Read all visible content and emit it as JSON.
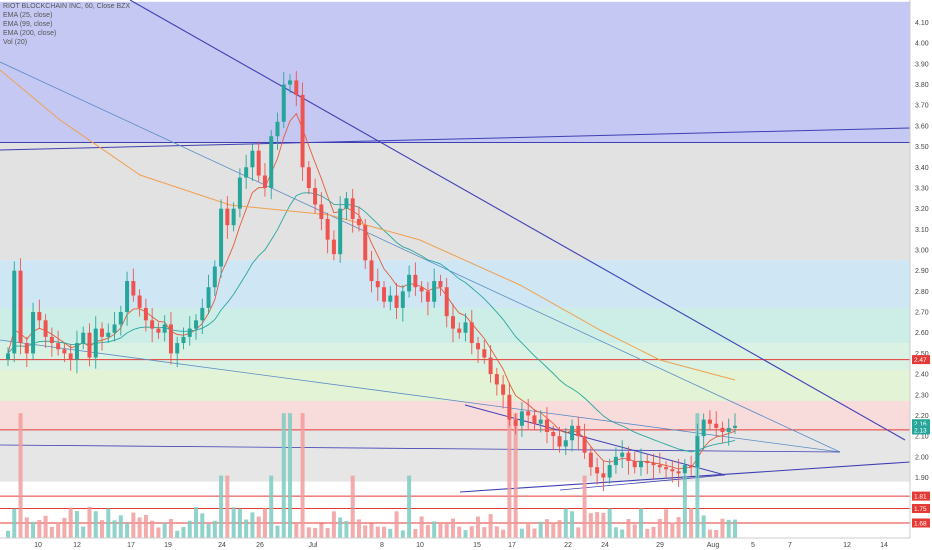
{
  "chart_data": {
    "type": "candlestick",
    "title": "RIOT BLOCKCHAIN INC, 60, Close BZX",
    "legend": [
      "EMA (25, close)",
      "EMA (99, close)",
      "EMA (200, close)",
      "Vol (20)"
    ],
    "ylim": [
      1.55,
      4.2
    ],
    "yticks": [
      "4.10",
      "4.00",
      "3.90",
      "3.80",
      "3.70",
      "3.60",
      "3.50",
      "3.40",
      "3.30",
      "3.20",
      "3.10",
      "3.00",
      "2.90",
      "2.80",
      "2.70",
      "2.60",
      "2.50",
      "2.40",
      "2.30",
      "2.20",
      "2.10",
      "2.00",
      "1.90",
      "1.80"
    ],
    "xticks": [
      "10",
      "12",
      "17",
      "19",
      "24",
      "26",
      "Jul",
      "8",
      "10",
      "15",
      "17",
      "22",
      "24",
      "29",
      "Aug",
      "5",
      "7",
      "12",
      "14"
    ],
    "price_badges": [
      {
        "label": "2.47",
        "value": 2.47,
        "color": "#e53935"
      },
      {
        "label": "2.16",
        "value": 2.16,
        "color": "#26a69a"
      },
      {
        "label": "2.13",
        "value": 2.13,
        "color": "#26a69a"
      },
      {
        "label": "1.81",
        "value": 1.81,
        "color": "#e53935"
      },
      {
        "label": "1.75",
        "value": 1.75,
        "color": "#e53935"
      },
      {
        "label": "1.68",
        "value": 1.68,
        "color": "#e53935"
      }
    ],
    "fib_bands": [
      {
        "from": 3.52,
        "to": 4.2,
        "color": "#c5c8f2"
      },
      {
        "from": 2.95,
        "to": 3.52,
        "color": "#e2e2e2"
      },
      {
        "from": 2.72,
        "to": 2.95,
        "color": "#cfe6f5"
      },
      {
        "from": 2.55,
        "to": 2.72,
        "color": "#cdeee7"
      },
      {
        "from": 2.42,
        "to": 2.55,
        "color": "#d9f2e4"
      },
      {
        "from": 2.27,
        "to": 2.42,
        "color": "#e2f3d6"
      },
      {
        "from": 2.13,
        "to": 2.27,
        "color": "#f8dcdc"
      },
      {
        "from": 1.88,
        "to": 2.13,
        "color": "#e6e6e6"
      }
    ],
    "horizontal_lines": [
      {
        "value": 3.52,
        "color": "#3f3fb5"
      },
      {
        "value": 2.47,
        "color": "#e53935"
      },
      {
        "value": 2.13,
        "color": "#e53935"
      },
      {
        "value": 1.81,
        "color": "#e53935"
      },
      {
        "value": 1.75,
        "color": "#e53935"
      },
      {
        "value": 1.68,
        "color": "#e53935"
      }
    ],
    "close_series": [
      2.5,
      2.9,
      2.55,
      2.5,
      2.7,
      2.66,
      2.58,
      2.55,
      2.52,
      2.5,
      2.47,
      2.55,
      2.6,
      2.48,
      2.62,
      2.58,
      2.6,
      2.64,
      2.7,
      2.85,
      2.78,
      2.72,
      2.66,
      2.62,
      2.6,
      2.64,
      2.5,
      2.55,
      2.58,
      2.62,
      2.66,
      2.72,
      2.82,
      2.92,
      3.2,
      3.12,
      3.2,
      3.35,
      3.4,
      3.48,
      3.36,
      3.3,
      3.55,
      3.62,
      3.8,
      3.82,
      3.75,
      3.4,
      3.3,
      3.22,
      3.15,
      3.05,
      2.98,
      3.2,
      3.25,
      3.15,
      3.12,
      2.95,
      2.85,
      2.82,
      2.75,
      2.78,
      2.72,
      2.8,
      2.88,
      2.82,
      2.8,
      2.75,
      2.85,
      2.82,
      2.68,
      2.62,
      2.6,
      2.65,
      2.55,
      2.52,
      2.48,
      2.4,
      2.35,
      2.3,
      2.18,
      2.15,
      2.22,
      2.2,
      2.16,
      2.18,
      2.12,
      2.1,
      2.05,
      2.08,
      2.15,
      2.1,
      2.02,
      1.95,
      1.92,
      1.9,
      1.96,
      2.0,
      2.02,
      1.98,
      1.95,
      1.98,
      1.97,
      1.96,
      1.95,
      1.94,
      1.93,
      1.92,
      1.96,
      1.95,
      2.1,
      2.18,
      2.16,
      2.14,
      2.12,
      2.14,
      2.15
    ]
  }
}
